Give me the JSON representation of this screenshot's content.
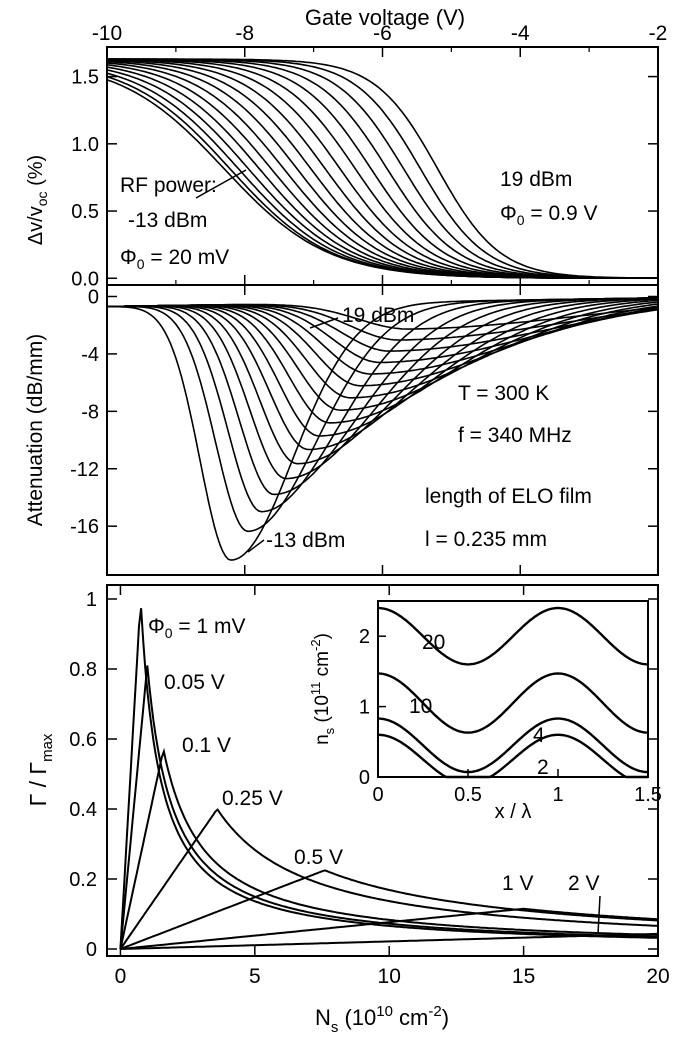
{
  "chart_data": [
    {
      "id": "top",
      "type": "line",
      "xlabel": "Gate voltage (V)",
      "ylabel": "Δv/v",
      "ylabel_sub": "oc",
      "ylabel_tail": " (%)",
      "xlim": [
        -10,
        -2
      ],
      "ylim": [
        -0.05,
        1.72
      ],
      "xticks": [
        -10,
        -8,
        -6,
        -4,
        -2
      ],
      "xtick_labels": [
        "-10",
        "-8",
        "-6",
        "-4",
        "-2"
      ],
      "yticks": [
        0,
        0.5,
        1.0,
        1.5
      ],
      "ytick_labels": [
        "0.0",
        "0.5",
        "1.0",
        "1.5"
      ],
      "series_family": {
        "count": 17,
        "top_value": 1.63,
        "midpoint_first": -8.3,
        "midpoint_last": -5.2,
        "width_first": 0.75,
        "width_last": 0.45
      },
      "annotations": {
        "rf_power": "RF power:",
        "low_power": "-13 dBm",
        "phi_low": "Φ",
        "phi_low_sub": "0",
        "phi_low_value": " = 20 mV",
        "high_power": "19 dBm",
        "phi_high": "Φ",
        "phi_high_sub": "0",
        "phi_high_value": " = 0.9 V"
      }
    },
    {
      "id": "middle",
      "type": "line",
      "xlabel": "",
      "ylabel": "Attenuation (dB/mm)",
      "xlim": [
        -10,
        -2
      ],
      "ylim": [
        -19.4,
        0.8
      ],
      "yticks": [
        0,
        -4,
        -8,
        -12,
        -16
      ],
      "ytick_labels": [
        "0",
        "-4",
        "-8",
        "-12",
        "-16"
      ],
      "series_family": {
        "count": 17,
        "peak_first": -18.5,
        "peak_last": -2.6,
        "peak_pos_first": -8.2,
        "peak_pos_last": -5.6
      },
      "annotations": {
        "high_power": "19 dBm",
        "low_power": "-13 dBm",
        "temperature": "T = 300 K",
        "frequency": "f = 340 MHz",
        "film": "length of ELO film",
        "length": "l = 0.235 mm"
      }
    },
    {
      "id": "bottom",
      "type": "line",
      "xlabel": "N",
      "xlabel_sub": "s",
      "xlabel_tail": " (10",
      "xlabel_sup": "10",
      "xlabel_end": " cm",
      "xlabel_sup2": "-2",
      "xlabel_close": ")",
      "ylabel": "Γ / Γ",
      "ylabel_sub": "max",
      "xlim": [
        -0.5,
        20
      ],
      "ylim": [
        -0.02,
        1.04
      ],
      "xticks": [
        0,
        5,
        10,
        15,
        20
      ],
      "xtick_labels": [
        "0",
        "5",
        "10",
        "15",
        "20"
      ],
      "yticks": [
        0,
        0.2,
        0.4,
        0.6,
        0.8,
        1
      ],
      "ytick_labels": [
        "0",
        "0.2",
        "0.4",
        "0.6",
        "0.8",
        "1"
      ],
      "series": [
        {
          "name": "Φ₀ = 1 mV",
          "peak_x": 0.75,
          "peak_y": 1.0
        },
        {
          "name": "0.05 V",
          "peak_x": 1.0,
          "peak_y": 0.81
        },
        {
          "name": "0.1 V",
          "peak_x": 1.6,
          "peak_y": 0.57
        },
        {
          "name": "0.25 V",
          "peak_x": 3.6,
          "peak_y": 0.4
        },
        {
          "name": "0.5 V",
          "peak_x": 7.6,
          "peak_y": 0.225
        },
        {
          "name": "1 V",
          "peak_x": 15.0,
          "peak_y": 0.115
        },
        {
          "name": "2 V",
          "peak_x": 30.0,
          "peak_y": 0.065
        }
      ],
      "labels": {
        "phi": "Φ",
        "phi_sub": "0",
        "phi_value": " = 1 mV",
        "v005": "0.05 V",
        "v01": "0.1 V",
        "v025": "0.25 V",
        "v05": "0.5 V",
        "v1": "1 V",
        "v2": "2 V"
      }
    },
    {
      "id": "inset",
      "type": "line",
      "xlabel": "x / λ",
      "ylabel": "n",
      "ylabel_sub": "s",
      "ylabel_tail": " (10",
      "ylabel_sup": "11",
      "ylabel_end": " cm",
      "ylabel_sup2": "-2",
      "ylabel_close": ")",
      "xlim": [
        0,
        1.5
      ],
      "ylim": [
        0,
        2.5
      ],
      "xticks": [
        0,
        0.5,
        1,
        1.5
      ],
      "xtick_labels": [
        "0",
        "0.5",
        "1",
        "1.5"
      ],
      "yticks": [
        0,
        1,
        2
      ],
      "ytick_labels": [
        "0",
        "1",
        "2"
      ],
      "series": [
        {
          "name": "20",
          "mean": 2.0,
          "amplitude": 0.4
        },
        {
          "name": "10",
          "mean": 1.05,
          "amplitude": 0.42
        },
        {
          "name": "4",
          "mean": 0.45,
          "amplitude": 0.38
        },
        {
          "name": "2",
          "mean": 0.25,
          "amplitude": 0.35
        }
      ]
    }
  ]
}
